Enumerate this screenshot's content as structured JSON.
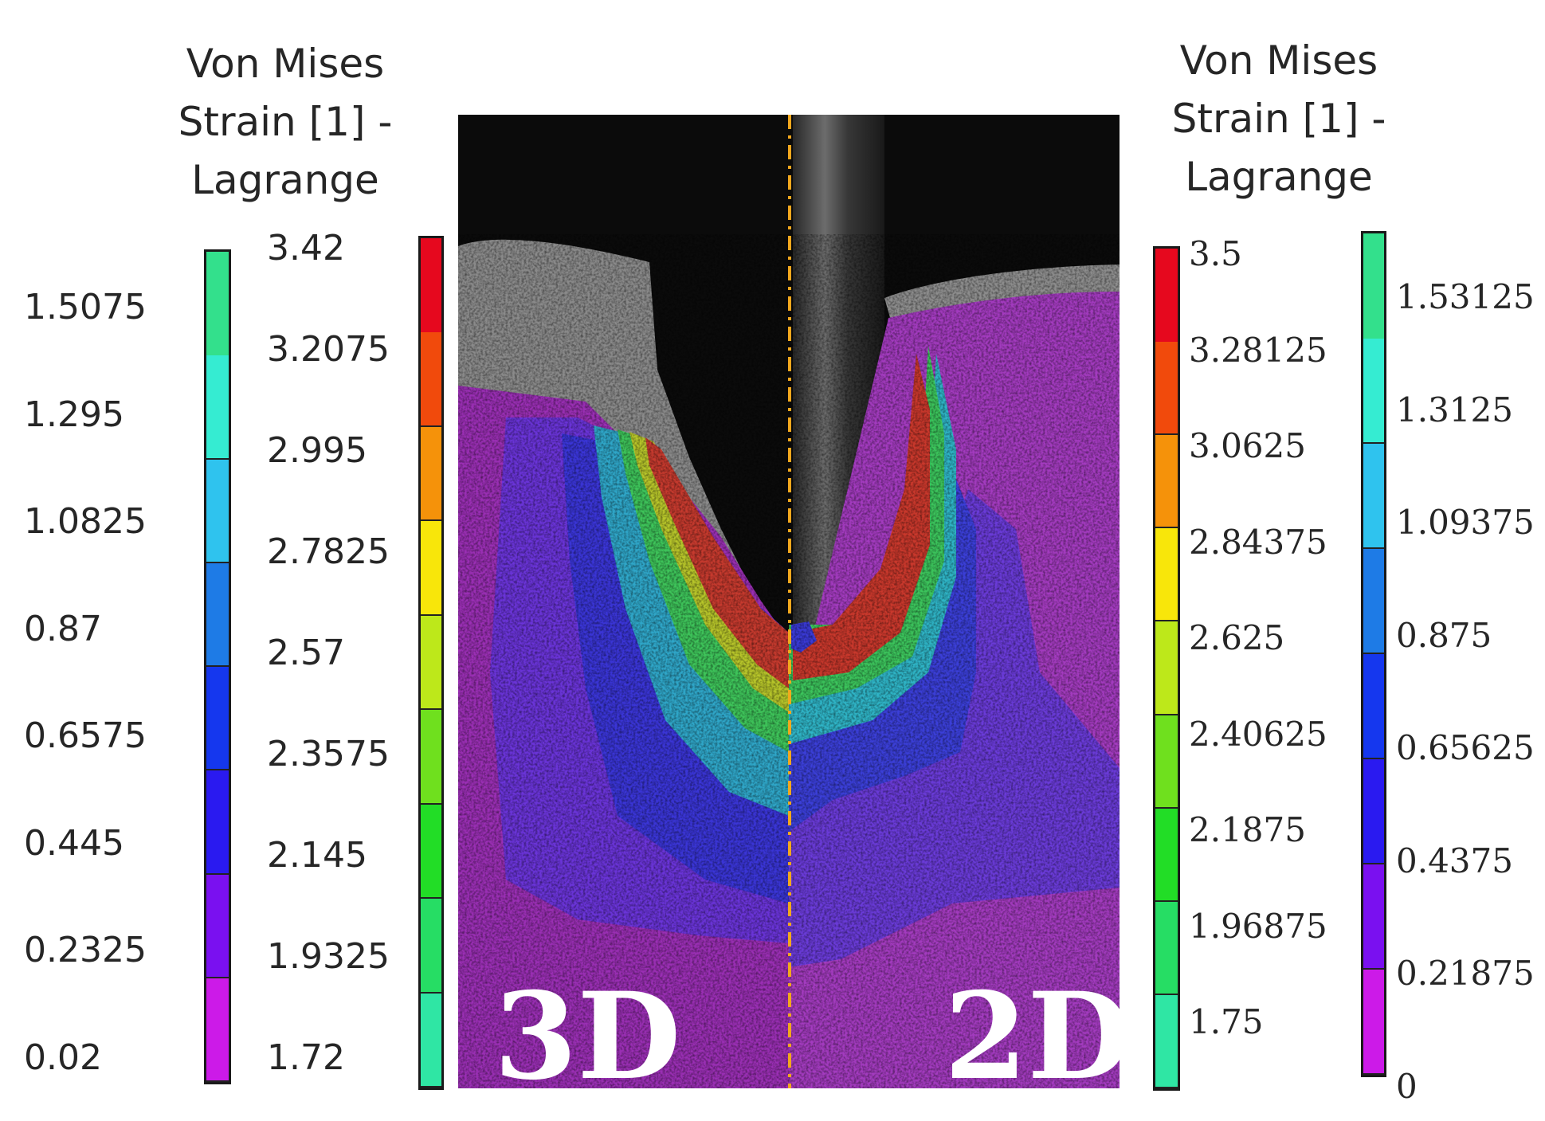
{
  "left_colorbar_3d": {
    "title_lines": [
      "Von Mises",
      "Strain [1] -",
      "Lagrange"
    ],
    "low_range_ticks": [
      "1.5075",
      "1.295",
      "1.0825",
      "0.87",
      "0.6575",
      "0.445",
      "0.2325",
      "0.02"
    ],
    "high_range_ticks": [
      "3.42",
      "3.2075",
      "2.995",
      "2.7825",
      "2.57",
      "2.3575",
      "2.145",
      "1.9325",
      "1.72"
    ],
    "low_range_colors": [
      "#33e08c",
      "#35ecd2",
      "#2fc3ee",
      "#1e7be6",
      "#1537ee",
      "#2a1af0",
      "#7a10f0",
      "#cc1ae8"
    ],
    "high_range_colors": [
      "#e6081e",
      "#f14a0c",
      "#f5920a",
      "#f8e60a",
      "#bde81a",
      "#6fe01e",
      "#22dd26",
      "#26dd64",
      "#2fe6a4"
    ]
  },
  "right_colorbar_2d": {
    "title_lines": [
      "Von Mises",
      "Strain [1] -",
      "Lagrange"
    ],
    "high_range_ticks": [
      "3.5",
      "3.28125",
      "3.0625",
      "2.84375",
      "2.625",
      "2.40625",
      "2.1875",
      "1.96875",
      "1.75"
    ],
    "low_range_ticks": [
      "1.53125",
      "1.3125",
      "1.09375",
      "0.875",
      "0.65625",
      "0.4375",
      "0.21875",
      "0"
    ],
    "high_range_colors": [
      "#e6081e",
      "#f14a0c",
      "#f5920a",
      "#f8e60a",
      "#bde81a",
      "#6fe01e",
      "#22dd26",
      "#26dd64",
      "#2fe6a4"
    ],
    "low_range_colors": [
      "#33e08c",
      "#35ecd2",
      "#2fc3ee",
      "#1e7be6",
      "#1537ee",
      "#2a1af0",
      "#7a10f0",
      "#cc1ae8"
    ]
  },
  "panels": {
    "left_label": "3D",
    "right_label": "2D",
    "divider_color": "#f2a81d"
  }
}
